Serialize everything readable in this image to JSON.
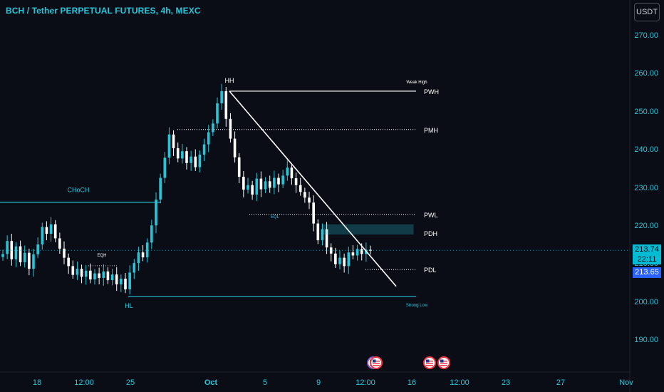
{
  "header": {
    "title": "BCH / Tether PERPETUAL FUTURES, 4h, MEXC",
    "currency_button": "USDT"
  },
  "colors": {
    "background": "#0b0d16",
    "accent": "#26c6da",
    "candle_body": "#26c6da",
    "line_white": "#ffffff",
    "current_price_tag": "#00bcd4",
    "close_tag": "#2962ff"
  },
  "price_tags": {
    "last": "213.74",
    "countdown": "22:11",
    "close": "213.65"
  },
  "event_icons": [
    "us-flag-icon",
    "us-flag-icon",
    "us-flag-icon",
    "us-flag-icon"
  ],
  "chart_data": {
    "type": "candlestick",
    "title": "BCH / Tether PERPETUAL FUTURES, 4h, MEXC",
    "ylim": [
      181,
      277
    ],
    "y_ticks": [
      270,
      260,
      250,
      240,
      230,
      220,
      210,
      200,
      190
    ],
    "y_tick_labels": [
      "270.00",
      "260.00",
      "250.00",
      "240.00",
      "230.00",
      "220.00",
      "210.00",
      "200.00",
      "190.00"
    ],
    "x_tick_labels": [
      "18",
      "12:00",
      "25",
      "Oct",
      "5",
      "9",
      "12:00",
      "16",
      "12:00",
      "23",
      "27",
      "Nov"
    ],
    "series": [
      {
        "values": [
          212.8,
          216.2,
          211.4,
          214.8,
          210.6,
          213.1,
          208.9,
          212.7,
          215.3,
          219.9,
          218.1,
          220.6,
          216.9,
          214.2,
          211.8,
          209.6,
          207.3,
          208.9,
          206.8,
          208.4,
          206.1,
          207.7,
          206.5,
          208.2,
          205.9,
          207.4,
          204.8,
          206.3,
          203.5,
          207.9,
          210.4,
          213.2,
          211.9,
          215.8,
          220.3,
          227.1,
          232.8,
          238.1,
          244.2,
          240.6,
          237.9,
          239.8,
          236.7,
          238.4,
          235.6,
          238.9,
          241.6,
          244.8,
          247.1,
          252.4,
          255.6,
          248.3,
          243.1,
          238.2,
          233.1,
          229.7,
          230.9,
          228.4,
          232.6,
          229.8,
          231.9,
          230.2,
          232.8,
          231.1,
          233.4,
          235.5,
          232.7,
          230.9,
          229.1,
          227.6,
          226.3,
          220.8,
          216.4,
          219.3,
          214.5,
          212.9,
          210.1,
          211.8,
          209.6,
          213.2,
          212.4,
          214.1,
          212.8,
          213.9,
          213.65
        ]
      }
    ],
    "last_price": 213.74,
    "close_price": 213.65,
    "countdown": "22:11",
    "levels": [
      {
        "label": "PWH",
        "value": 255.6,
        "style": "dotted"
      },
      {
        "label": "PMH",
        "value": 245.5,
        "style": "dotted"
      },
      {
        "label": "PWL",
        "value": 223.2,
        "style": "dotted"
      },
      {
        "label": "PDH",
        "value": 218.3,
        "style": "zone"
      },
      {
        "label": "PDL",
        "value": 208.7,
        "style": "dotted"
      }
    ],
    "annotations": [
      {
        "text": "HH",
        "at": 255.6
      },
      {
        "text": "HL",
        "at": 202.0
      },
      {
        "text": "CHoCH",
        "at": 226.4
      },
      {
        "text": "EQH",
        "at": 209.7
      },
      {
        "text": "EQL",
        "at": 223.2
      },
      {
        "text": "Weak High",
        "at": 255.6
      },
      {
        "text": "Strong Low",
        "at": 201.6
      }
    ],
    "structure_lines": [
      {
        "name": "choch-line",
        "value": 226.4
      },
      {
        "name": "strong-low-line",
        "value": 201.6
      }
    ],
    "trendline": {
      "from": 255.6,
      "to": 204.3
    },
    "grid": false
  }
}
